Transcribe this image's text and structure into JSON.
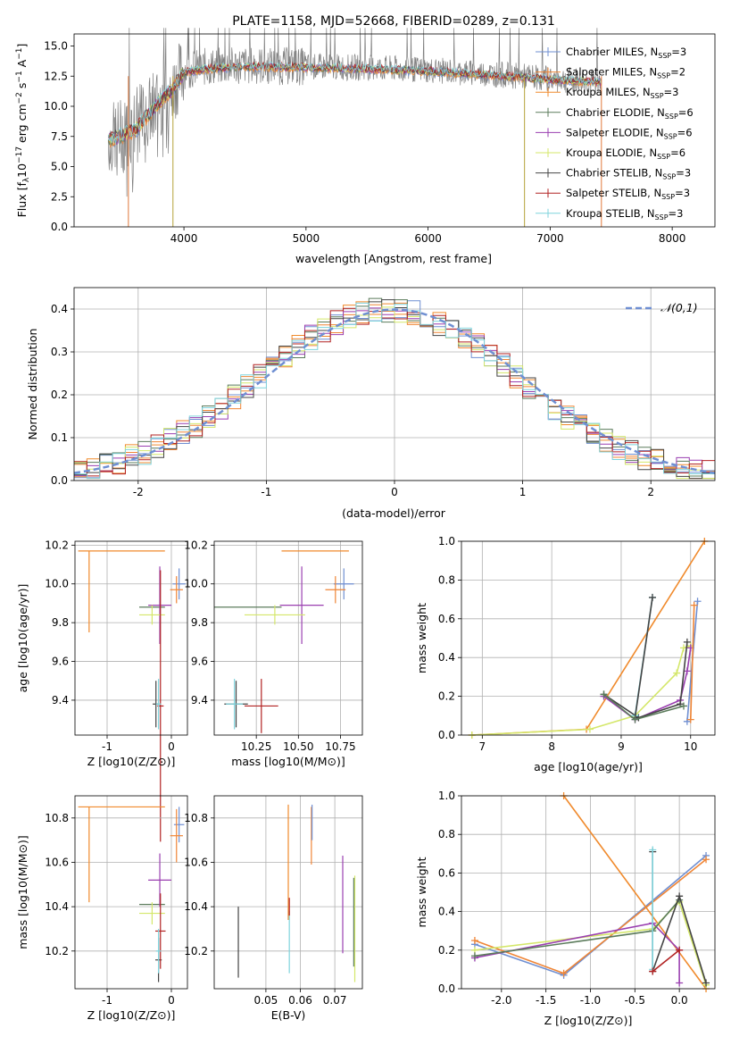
{
  "title": "PLATE=1158, MJD=52668, FIBERID=0289, z=0.131",
  "models": [
    {
      "label": "Chabrier MILES, N_SSP=3",
      "color": "#6f8fd2"
    },
    {
      "label": "Salpeter MILES, N_SSP=2",
      "color": "#ef8536"
    },
    {
      "label": "Kroupa MILES, N_SSP=3",
      "color": "#f08a2c"
    },
    {
      "label": "Chabrier ELODIE, N_SSP=6",
      "color": "#5b7b5b"
    },
    {
      "label": "Salpeter ELODIE, N_SSP=6",
      "color": "#9a3fb0"
    },
    {
      "label": "Kroupa ELODIE, N_SSP=6",
      "color": "#d4e76a"
    },
    {
      "label": "Chabrier STELIB, N_SSP=3",
      "color": "#444444"
    },
    {
      "label": "Salpeter STELIB, N_SSP=3",
      "color": "#b22222"
    },
    {
      "label": "Kroupa STELIB, N_SSP=3",
      "color": "#7fd3dc"
    }
  ],
  "chart_data": [
    {
      "type": "line",
      "title": "PLATE=1158, MJD=52668, FIBERID=0289, z=0.131",
      "xlabel": "wavelength [Angstrom, rest frame]",
      "ylabel": "Flux [f_λ 10^-17 erg cm^-2 s^-1 A^-1]",
      "xlim": [
        3100,
        8350
      ],
      "ylim": [
        0,
        16
      ],
      "xticks": [
        4000,
        5000,
        6000,
        7000,
        8000
      ],
      "yticks": [
        0.0,
        2.5,
        5.0,
        7.5,
        10.0,
        12.5,
        15.0
      ],
      "legend": "right",
      "data_observed": {
        "x": [
          3380,
          3500,
          3600,
          3700,
          3800,
          3900,
          4000,
          4200,
          4500,
          5000,
          5500,
          6000,
          6500,
          7000,
          7400
        ],
        "y": [
          7.2,
          7.8,
          8.5,
          9.5,
          10.5,
          11.5,
          13.0,
          13.3,
          13.4,
          13.3,
          13.2,
          13.0,
          12.7,
          12.3,
          12.0
        ]
      },
      "model_mean": {
        "x": [
          3380,
          3500,
          3600,
          3700,
          3800,
          3900,
          4000,
          4200,
          4500,
          5000,
          5500,
          6000,
          6500,
          7000,
          7400
        ],
        "y": [
          7.2,
          7.6,
          8.0,
          9.2,
          10.4,
          11.3,
          12.8,
          13.1,
          13.3,
          13.2,
          13.1,
          12.9,
          12.6,
          12.2,
          12.0
        ]
      }
    },
    {
      "type": "bar",
      "xlabel": "(data-model)/error",
      "ylabel": "Normed distribution",
      "xlim": [
        -2.5,
        2.5
      ],
      "ylim": [
        0,
        0.45
      ],
      "xticks": [
        -2,
        -1,
        0,
        1,
        2
      ],
      "yticks": [
        0.0,
        0.1,
        0.2,
        0.3,
        0.4
      ],
      "grid": true,
      "legend": "top-right",
      "reference_curve": {
        "name": "𝒩(0,1)",
        "color": "#6f8fd2"
      }
    },
    {
      "type": "scatter",
      "xlabel": "Z [log10(Z/Z⊙)]",
      "ylabel": "age [log10(age/yr)]",
      "xlim": [
        -1.5,
        0.25
      ],
      "ylim": [
        9.22,
        10.22
      ],
      "xticks": [
        -1,
        0
      ],
      "yticks": [
        9.4,
        9.6,
        9.8,
        10.0,
        10.2
      ],
      "points": [
        {
          "x": 0.12,
          "y": 10.0,
          "xe": 0.1,
          "ye": 0.08,
          "c": 0
        },
        {
          "x": 0.08,
          "y": 9.97,
          "xe": 0.1,
          "ye": 0.07,
          "c": 1
        },
        {
          "x": -1.28,
          "y": 10.17,
          "xe": 0.0,
          "ye": 0.0,
          "c": 2,
          "xl": -1.45,
          "xh": -0.1,
          "yl": 9.75,
          "yh": 10.17
        },
        {
          "x": -0.3,
          "y": 9.88,
          "xe": 0.2,
          "ye": 0.0,
          "c": 3
        },
        {
          "x": -0.18,
          "y": 9.89,
          "xe": 0.18,
          "ye": 0.2,
          "c": 4
        },
        {
          "x": -0.3,
          "y": 9.84,
          "xe": 0.2,
          "ye": 0.05,
          "c": 5
        },
        {
          "x": -0.24,
          "y": 9.38,
          "xe": 0.05,
          "ye": 0.12,
          "c": 6
        },
        {
          "x": -0.17,
          "y": 9.37,
          "xe": 0.05,
          "ye": 0.7,
          "c": 7
        },
        {
          "x": -0.2,
          "y": 9.38,
          "xe": 0.04,
          "ye": 0.13,
          "c": 8
        }
      ]
    },
    {
      "type": "scatter",
      "xlabel": "mass [log10(M/M⊙)]",
      "ylabel": "",
      "xlim": [
        10.0,
        10.88
      ],
      "ylim": [
        9.22,
        10.22
      ],
      "xticks": [
        10.25,
        10.5,
        10.75
      ],
      "yticks": [
        9.4,
        9.6,
        9.8,
        10.0,
        10.2
      ],
      "points": [
        {
          "x": 10.77,
          "y": 10.0,
          "xe": 0.06,
          "ye": 0.08,
          "c": 0
        },
        {
          "x": 10.72,
          "y": 9.97,
          "xe": 0.06,
          "ye": 0.07,
          "c": 1
        },
        {
          "x": 10.6,
          "y": 10.17,
          "xe": 0.2,
          "ye": 0.0,
          "c": 2
        },
        {
          "x": 10.2,
          "y": 9.88,
          "xe": 0.2,
          "ye": 0.0,
          "c": 3
        },
        {
          "x": 10.52,
          "y": 9.89,
          "xe": 0.13,
          "ye": 0.2,
          "c": 4
        },
        {
          "x": 10.36,
          "y": 9.84,
          "xe": 0.18,
          "ye": 0.05,
          "c": 5
        },
        {
          "x": 10.13,
          "y": 9.38,
          "xe": 0.07,
          "ye": 0.12,
          "c": 6
        },
        {
          "x": 10.28,
          "y": 9.37,
          "xe": 0.1,
          "ye": 0.14,
          "c": 7
        },
        {
          "x": 10.12,
          "y": 9.38,
          "xe": 0.05,
          "ye": 0.13,
          "c": 8
        }
      ]
    },
    {
      "type": "line",
      "xlabel": "age [log10(age/yr)]",
      "ylabel": "mass weight",
      "xlim": [
        6.7,
        10.35
      ],
      "ylim": [
        0,
        1.0
      ],
      "xticks": [
        7,
        8,
        9,
        10
      ],
      "yticks": [
        0.0,
        0.2,
        0.4,
        0.6,
        0.8,
        1.0
      ],
      "series": [
        {
          "c": 2,
          "x": [
            6.85,
            8.5,
            10.2
          ],
          "y": [
            0.0,
            0.03,
            1.0
          ]
        },
        {
          "c": 5,
          "x": [
            6.85,
            8.55,
            9.2,
            9.8,
            9.9,
            10.0
          ],
          "y": [
            0.0,
            0.03,
            0.1,
            0.32,
            0.45,
            0.46
          ]
        },
        {
          "c": 4,
          "x": [
            8.75,
            9.2,
            9.85,
            9.95,
            10.0
          ],
          "y": [
            0.2,
            0.08,
            0.18,
            0.33,
            0.45
          ]
        },
        {
          "c": 6,
          "x": [
            8.75,
            9.25,
            9.85,
            9.95
          ],
          "y": [
            0.21,
            0.09,
            0.16,
            0.48
          ]
        },
        {
          "c": 8,
          "x": [
            9.2,
            9.45
          ],
          "y": [
            0.1,
            0.71
          ]
        },
        {
          "c": 6,
          "x": [
            9.2,
            9.45
          ],
          "y": [
            0.09,
            0.71
          ]
        },
        {
          "c": 0,
          "x": [
            9.95,
            10.1
          ],
          "y": [
            0.07,
            0.69
          ]
        },
        {
          "c": 1,
          "x": [
            10.0,
            10.05
          ],
          "y": [
            0.08,
            0.67
          ]
        },
        {
          "c": 3,
          "x": [
            8.75,
            9.2,
            9.9
          ],
          "y": [
            0.21,
            0.08,
            0.15
          ]
        }
      ]
    },
    {
      "type": "scatter",
      "xlabel": "Z [log10(Z/Z⊙)]",
      "ylabel": "mass [log10(M/M⊙)]",
      "xlim": [
        -1.5,
        0.25
      ],
      "ylim": [
        10.03,
        10.9
      ],
      "xticks": [
        -1,
        0
      ],
      "yticks": [
        10.2,
        10.4,
        10.6,
        10.8
      ],
      "points": [
        {
          "x": 0.12,
          "y": 10.77,
          "xe": 0.08,
          "ye": 0.08,
          "c": 0
        },
        {
          "x": 0.08,
          "y": 10.72,
          "xe": 0.1,
          "ye": 0.12,
          "c": 1
        },
        {
          "x": -1.28,
          "y": 10.85,
          "xe": 0.0,
          "ye": 0.0,
          "c": 2,
          "xl": -1.45,
          "xh": -0.1,
          "yl": 10.42,
          "yh": 10.85
        },
        {
          "x": -0.3,
          "y": 10.41,
          "xe": 0.2,
          "ye": 0.0,
          "c": 3
        },
        {
          "x": -0.18,
          "y": 10.52,
          "xe": 0.18,
          "ye": 0.12,
          "c": 4
        },
        {
          "x": -0.3,
          "y": 10.37,
          "xe": 0.2,
          "ye": 0.05,
          "c": 5
        },
        {
          "x": -0.2,
          "y": 10.16,
          "xe": 0.05,
          "ye": 0.1,
          "c": 6
        },
        {
          "x": -0.17,
          "y": 10.29,
          "xe": 0.08,
          "ye": 0.17,
          "c": 7
        },
        {
          "x": -0.2,
          "y": 10.2,
          "xe": 0.04,
          "ye": 0.1,
          "c": 8
        }
      ]
    },
    {
      "type": "scatter",
      "xlabel": "E(B-V)",
      "ylabel": "",
      "xlim": [
        0.035,
        0.078
      ],
      "ylim": [
        10.03,
        10.9
      ],
      "xticks": [
        0.05,
        0.06,
        0.07
      ],
      "yticks": [
        10.2,
        10.4,
        10.6,
        10.8
      ],
      "points": [
        {
          "x": 0.042,
          "y": 10.24,
          "ye": 0.16,
          "c": 6
        },
        {
          "x": 0.0565,
          "y": 10.6,
          "ye": 0.26,
          "c": 2
        },
        {
          "x": 0.0568,
          "y": 10.24,
          "ye": 0.14,
          "c": 8
        },
        {
          "x": 0.0568,
          "y": 10.4,
          "ye": 0.04,
          "c": 7
        },
        {
          "x": 0.0632,
          "y": 10.72,
          "ye": 0.13,
          "c": 1
        },
        {
          "x": 0.0634,
          "y": 10.78,
          "ye": 0.08,
          "c": 0
        },
        {
          "x": 0.0723,
          "y": 10.41,
          "ye": 0.22,
          "c": 4
        },
        {
          "x": 0.0758,
          "y": 10.3,
          "ye": 0.24,
          "c": 5
        },
        {
          "x": 0.0755,
          "y": 10.33,
          "ye": 0.2,
          "c": 3
        }
      ]
    },
    {
      "type": "line",
      "xlabel": "Z [log10(Z/Z⊙)]",
      "ylabel": "mass weight",
      "xlim": [
        -2.45,
        0.4
      ],
      "ylim": [
        0,
        1.0
      ],
      "xticks": [
        -2.0,
        -1.5,
        -1.0,
        -0.5,
        0.0
      ],
      "yticks": [
        0.0,
        0.2,
        0.4,
        0.6,
        0.8,
        1.0
      ],
      "series": [
        {
          "c": 0,
          "x": [
            -2.3,
            -1.3,
            0.3
          ],
          "y": [
            0.23,
            0.07,
            0.69
          ]
        },
        {
          "c": 1,
          "x": [
            -2.3,
            -1.3,
            0.3
          ],
          "y": [
            0.25,
            0.08,
            0.67
          ]
        },
        {
          "c": 2,
          "x": [
            -1.3,
            0.3
          ],
          "y": [
            1.0,
            0.0
          ]
        },
        {
          "c": 5,
          "x": [
            -2.3,
            -0.3,
            0.0,
            0.3
          ],
          "y": [
            0.2,
            0.31,
            0.45,
            0.02
          ]
        },
        {
          "c": 4,
          "x": [
            -2.3,
            -0.3,
            0.0,
            0.0
          ],
          "y": [
            0.16,
            0.34,
            0.2,
            0.03
          ]
        },
        {
          "c": 3,
          "x": [
            -2.3,
            -0.3,
            0.0
          ],
          "y": [
            0.17,
            0.3,
            0.46
          ]
        },
        {
          "c": 6,
          "x": [
            -0.3,
            -0.3,
            0.0,
            0.3
          ],
          "y": [
            0.71,
            0.09,
            0.48,
            0.03
          ]
        },
        {
          "c": 8,
          "x": [
            -0.3,
            -0.3
          ],
          "y": [
            0.72,
            0.1
          ]
        },
        {
          "c": 7,
          "x": [
            -0.3,
            0.0
          ],
          "y": [
            0.09,
            0.2
          ]
        }
      ]
    }
  ]
}
